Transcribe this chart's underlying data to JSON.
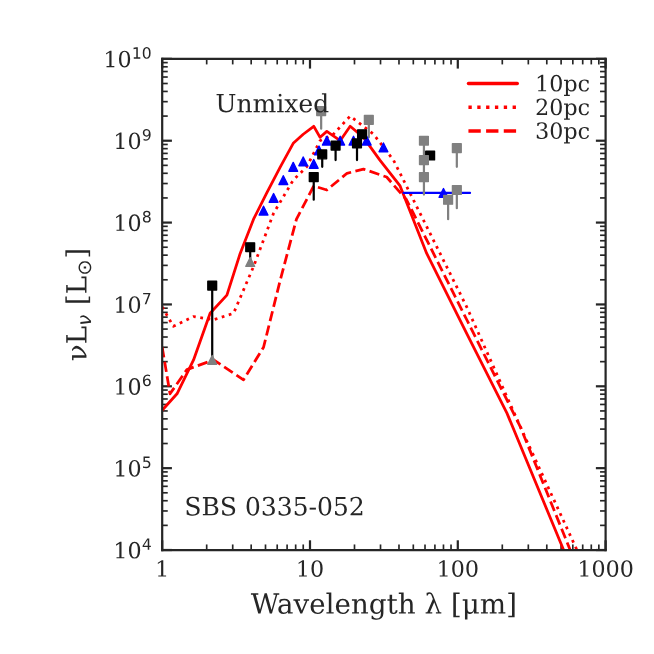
{
  "chart_data": {
    "type": "line",
    "xlabel": "Wavelength λ [μm]",
    "ylabel": "νL$_{ν}$ [L$_{⊙}$]",
    "log": "xy",
    "xlim": [
      1,
      1000
    ],
    "ylim": [
      10000,
      10000000000
    ],
    "xticks": [
      1,
      10,
      100,
      1000
    ],
    "yticks": [
      {
        "value": 10000,
        "label": "10$^{4}$"
      },
      {
        "value": 100000,
        "label": "10$^{5}$"
      },
      {
        "value": 1000000,
        "label": "10$^{6}$"
      },
      {
        "value": 10000000,
        "label": "10$^{7}$"
      },
      {
        "value": 100000000,
        "label": "10$^{8}$"
      },
      {
        "value": 1000000000,
        "label": "10$^{9}$"
      },
      {
        "value": 10000000000,
        "label": "10$^{10}$"
      }
    ],
    "legend": "top right",
    "grid": false,
    "annotations": [
      {
        "text": "Unmixed"
      },
      {
        "text": "SBS 0335-052"
      }
    ],
    "series": [
      {
        "name": "10pc",
        "line_style": "solid",
        "color": "#ff0000",
        "x": [
          1,
          1.26,
          1.63,
          2.11,
          2.74,
          3.37,
          4.15,
          5.1,
          6.3,
          7.7,
          9.0,
          10.6,
          11.7,
          13,
          16,
          18.7,
          23,
          29.7,
          40.7,
          61.6,
          115,
          215,
          520
        ],
        "values": [
          510000,
          810000,
          2100000,
          7800000,
          13000000,
          42000000,
          110000000,
          230000000,
          480000000,
          930000000,
          1200000000,
          1500000000,
          1100000000,
          1300000000,
          1000000000,
          1500000000,
          1100000000,
          580000000,
          280000000,
          42000000,
          4400000,
          470000,
          10000
        ]
      },
      {
        "name": "20pc",
        "line_style": "dotted",
        "color": "#ff0000",
        "x": [
          1,
          1.19,
          1.63,
          2.23,
          3.04,
          4.15,
          5.67,
          7.7,
          9.5,
          11.7,
          14.4,
          18.7,
          26.9,
          36.7,
          50,
          115,
          265,
          640
        ],
        "values": [
          9300000,
          5400000,
          7100000,
          6500000,
          7800000,
          29000000,
          130000000,
          330000000,
          480000000,
          1000000000,
          1200000000,
          2000000000,
          1200000000,
          580000000,
          190000000,
          9300000,
          320000,
          10000
        ]
      },
      {
        "name": "30pc",
        "line_style": "dashed",
        "color": "#ff0000",
        "x": [
          1,
          1.13,
          1.47,
          2.23,
          3.55,
          4.85,
          6.3,
          8.1,
          10.6,
          13,
          17.8,
          23,
          33,
          45,
          115,
          265,
          576
        ],
        "values": [
          3000000,
          810000,
          1600000,
          2100000,
          1200000,
          3000000,
          20000000,
          110000000,
          280000000,
          250000000,
          400000000,
          450000000,
          360000000,
          190000000,
          6500000,
          320000,
          10000
        ]
      },
      {
        "type": "scatter",
        "marker": "triangle",
        "color": "#0000ff",
        "x": [
          4.85,
          5.67,
          6.6,
          7.7,
          9.0,
          10.6,
          11.5,
          13.0,
          16,
          19.7,
          24.2,
          31.4
        ],
        "values": [
          140000000,
          200000000,
          330000000,
          480000000,
          560000000,
          520000000,
          760000000,
          1000000000,
          1000000000,
          1000000000,
          1000000000,
          830000000
        ]
      },
      {
        "type": "scatter",
        "marker": "triangle",
        "color": "#0000ff",
        "x": [
          80
        ],
        "values": [
          230000000
        ],
        "xerrors": [
          [
            43,
            121
          ]
        ]
      },
      {
        "type": "scatter",
        "marker": "square",
        "color": "#000000",
        "x": [
          2.18,
          3.94,
          10.6,
          12.1,
          14.9,
          20.8,
          22.5,
          65
        ],
        "values": [
          17000000,
          50000000,
          360000000,
          680000000,
          870000000,
          930000000,
          1200000000,
          660000000
        ],
        "errors": [
          [
            2100000,
            17000000
          ],
          [
            33000000,
            50000000
          ],
          [
            190000000,
            360000000
          ],
          [
            480000000,
            680000000
          ],
          [
            580000000,
            870000000
          ],
          [
            580000000,
            930000000
          ],
          null,
          null
        ]
      },
      {
        "type": "scatter",
        "marker": "square",
        "color": "#808080",
        "x": [
          11.9,
          25,
          59,
          59,
          59,
          98.5,
          86,
          98.5
        ],
        "values": [
          2300000000,
          1800000000,
          1000000000,
          580000000,
          360000000,
          810000000,
          190000000,
          250000000
        ],
        "errors": [
          [
            1400000000,
            2300000000
          ],
          [
            1100000000,
            1800000000
          ],
          [
            600000000,
            1000000000
          ],
          [
            360000000,
            580000000
          ],
          [
            220000000,
            360000000
          ],
          [
            480000000,
            810000000
          ],
          [
            110000000,
            190000000
          ],
          [
            150000000,
            250000000
          ]
        ]
      },
      {
        "type": "scatter",
        "marker": "triangle",
        "color": "#808080",
        "x": [
          2.18,
          3.94
        ],
        "values": [
          2100000,
          33000000
        ]
      }
    ]
  }
}
